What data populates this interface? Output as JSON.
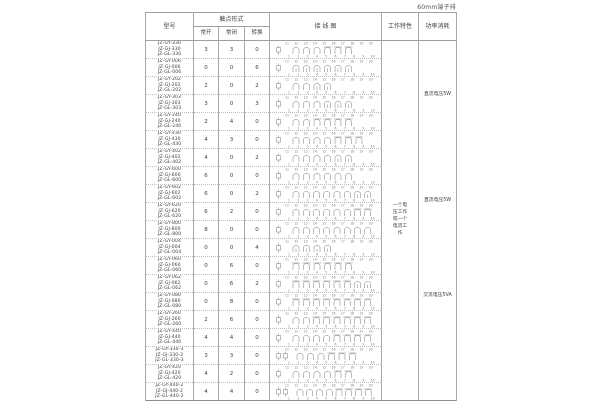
{
  "page": {
    "corner_label": "60mm端子排"
  },
  "table": {
    "headers": {
      "model": "型号",
      "contact_form": "触点形式",
      "no": "常开",
      "nc": "常闭",
      "co": "转换",
      "wiring": "接 线 图",
      "working": "工作特性",
      "power": "功率消耗"
    },
    "working_characteristic": "一个电压工作或一个电流工作",
    "power_consumption": [
      "直流电压5W",
      "直流电压5W",
      "交流电压5VA"
    ],
    "diagram": {
      "top_terminals": "11 12 13 14 15 16 17 18 19 20",
      "bottom_terminals": "1 2 3 4 5 6 7 8 9 10"
    },
    "rows": [
      {
        "models": [
          "JZ-GY-330",
          "JZ-GJ-330",
          "JZ-GL-330"
        ],
        "no": "3",
        "nc": "3",
        "co": "0",
        "coils": 1
      },
      {
        "models": [
          "JZ-GY-006",
          "JZ-GJ-006",
          "JZ-GL-006"
        ],
        "no": "0",
        "nc": "0",
        "co": "6",
        "coils": 1
      },
      {
        "models": [
          "JZ-GY-202",
          "JZ-GJ-202",
          "JZ-GL-202"
        ],
        "no": "2",
        "nc": "0",
        "co": "2",
        "coils": 1
      },
      {
        "models": [
          "JZ-GY-303",
          "JZ-GJ-303",
          "JZ-GL-303"
        ],
        "no": "3",
        "nc": "0",
        "co": "3",
        "coils": 1
      },
      {
        "models": [
          "JZ-GY-240",
          "JZ-GJ-240",
          "JZ-GL-240"
        ],
        "no": "2",
        "nc": "4",
        "co": "0",
        "coils": 1
      },
      {
        "models": [
          "JZ-GY-430",
          "JZ-GJ-430",
          "JZ-GL-430"
        ],
        "no": "4",
        "nc": "3",
        "co": "0",
        "coils": 1
      },
      {
        "models": [
          "JZ-GY-402",
          "JZ-GJ-402",
          "JZ-GL-402"
        ],
        "no": "4",
        "nc": "0",
        "co": "2",
        "coils": 1
      },
      {
        "models": [
          "JZ-GY-600",
          "JZ-GJ-600",
          "JZ-GL-600"
        ],
        "no": "6",
        "nc": "0",
        "co": "0",
        "coils": 1
      },
      {
        "models": [
          "JZ-GY-602",
          "JZ-GJ-602",
          "JZ-GL-602"
        ],
        "no": "6",
        "nc": "0",
        "co": "2",
        "coils": 1
      },
      {
        "models": [
          "JZ-GY-620",
          "JZ-GJ-620",
          "JZ-GL-620"
        ],
        "no": "6",
        "nc": "2",
        "co": "0",
        "coils": 1
      },
      {
        "models": [
          "JZ-GY-800",
          "JZ-GJ-800",
          "JZ-GL-800"
        ],
        "no": "8",
        "nc": "0",
        "co": "0",
        "coils": 1
      },
      {
        "models": [
          "JZ-GY-004",
          "JZ-GJ-004",
          "JZ-GL-004"
        ],
        "no": "0",
        "nc": "0",
        "co": "4",
        "coils": 1
      },
      {
        "models": [
          "JZ-GY-060",
          "JZ-GJ-060",
          "JZ-GL-060"
        ],
        "no": "0",
        "nc": "6",
        "co": "0",
        "coils": 1
      },
      {
        "models": [
          "JZ-GY-062",
          "JZ-GJ-062",
          "JZ-GL-062"
        ],
        "no": "0",
        "nc": "6",
        "co": "2",
        "coils": 1
      },
      {
        "models": [
          "JZ-GY-080",
          "JZ-GJ-080",
          "JZ-GL-080"
        ],
        "no": "0",
        "nc": "8",
        "co": "0",
        "coils": 1
      },
      {
        "models": [
          "JZ-GY-260",
          "JZ-GJ-260",
          "JZ-GL-260"
        ],
        "no": "2",
        "nc": "6",
        "co": "0",
        "coils": 1
      },
      {
        "models": [
          "JZ-GY-440",
          "JZ-GJ-440",
          "JZ-GL-440"
        ],
        "no": "4",
        "nc": "4",
        "co": "0",
        "coils": 1
      },
      {
        "models": [
          "JZ-GY-330-3",
          "JZ-GJ-330-3",
          "JZ-GL-330-3"
        ],
        "no": "3",
        "nc": "3",
        "co": "0",
        "coils": 2
      },
      {
        "models": [
          "JZ-GY-420",
          "JZ-GJ-420",
          "JZ-GL-420"
        ],
        "no": "4",
        "nc": "2",
        "co": "0",
        "coils": 1
      },
      {
        "models": [
          "JZ-GY-440-2",
          "JZ-GJ-440-2",
          "JZ-GL-440-2"
        ],
        "no": "4",
        "nc": "4",
        "co": "0",
        "coils": 2
      }
    ]
  }
}
